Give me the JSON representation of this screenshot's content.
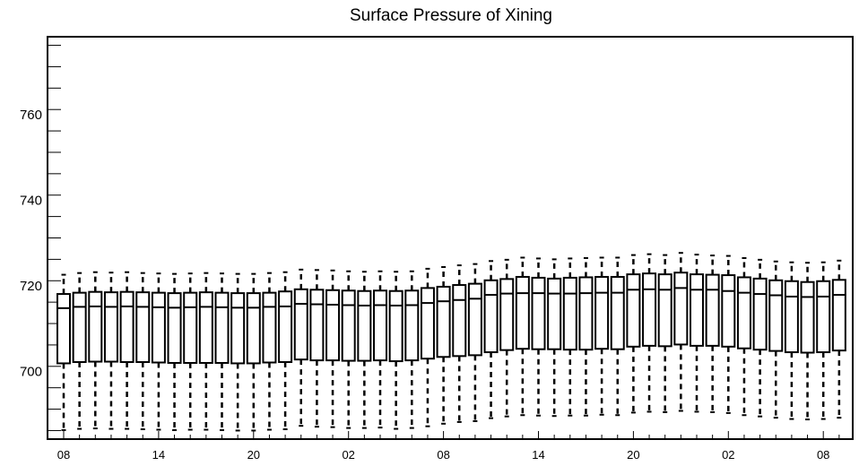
{
  "chart_data": {
    "type": "boxplot",
    "title": "Surface Pressure of Xining",
    "xlabel": "",
    "ylabel": "",
    "ylim": [
      684,
      778
    ],
    "y_ticks_major": [
      700,
      720,
      740,
      760
    ],
    "x_tick_labels": [
      "08",
      "14",
      "20",
      "02",
      "08",
      "14",
      "20",
      "02",
      "08"
    ],
    "x_tick_label_positions": [
      0,
      6,
      12,
      18,
      24,
      30,
      36,
      42,
      48
    ],
    "grid": false,
    "series": [
      {
        "q1": [
          701.7,
          702.0,
          702.1,
          702.1,
          702.0,
          702.0,
          701.9,
          701.8,
          701.8,
          701.8,
          701.8,
          701.7,
          701.7,
          701.9,
          702.0,
          702.6,
          702.4,
          702.4,
          702.3,
          702.3,
          702.4,
          702.2,
          702.4,
          702.8,
          703.2,
          703.4,
          703.6,
          704.3,
          704.8,
          705.1,
          705.0,
          705.0,
          704.9,
          704.9,
          705.1,
          705.0,
          705.6,
          705.8,
          705.7,
          706.1,
          705.8,
          705.8,
          705.6,
          705.2,
          704.9,
          704.6,
          704.3,
          704.2,
          704.3,
          704.7
        ],
        "median": [
          714.6,
          714.9,
          715.0,
          714.9,
          715.0,
          714.9,
          714.8,
          714.7,
          714.8,
          714.9,
          714.8,
          714.7,
          714.7,
          714.9,
          715.0,
          715.6,
          715.5,
          715.4,
          715.3,
          715.2,
          715.3,
          715.2,
          715.3,
          715.8,
          716.2,
          716.5,
          716.8,
          717.7,
          718.0,
          718.1,
          718.1,
          718.0,
          718.0,
          718.1,
          718.2,
          718.2,
          718.9,
          719.0,
          718.9,
          719.3,
          718.9,
          718.9,
          718.6,
          718.2,
          717.9,
          717.6,
          717.3,
          717.2,
          717.3,
          717.7
        ],
        "q3": [
          717.9,
          718.2,
          718.4,
          718.3,
          718.4,
          718.3,
          718.2,
          718.1,
          718.2,
          718.3,
          718.2,
          718.1,
          718.1,
          718.2,
          718.5,
          719.0,
          718.9,
          718.8,
          718.7,
          718.6,
          718.7,
          718.6,
          718.7,
          719.3,
          719.6,
          720.0,
          720.3,
          721.1,
          721.4,
          721.9,
          721.7,
          721.5,
          721.7,
          721.8,
          721.9,
          721.9,
          722.5,
          722.7,
          722.5,
          722.9,
          722.5,
          722.4,
          722.3,
          721.8,
          721.5,
          721.1,
          720.9,
          720.7,
          720.9,
          721.2
        ],
        "whisker_high": [
          722.4,
          722.8,
          723.0,
          722.9,
          723.0,
          722.8,
          722.7,
          722.6,
          722.7,
          722.8,
          722.7,
          722.6,
          722.6,
          722.8,
          723.0,
          723.6,
          723.5,
          723.4,
          723.2,
          723.1,
          723.2,
          723.1,
          723.2,
          723.8,
          724.2,
          724.6,
          724.9,
          725.6,
          725.9,
          726.4,
          726.2,
          726.0,
          726.2,
          726.3,
          726.4,
          726.4,
          727.0,
          727.2,
          727.0,
          727.5,
          727.1,
          726.9,
          726.8,
          726.3,
          725.9,
          725.5,
          725.3,
          725.2,
          725.3,
          725.7
        ],
        "whisker_low": [
          686.1,
          686.4,
          686.5,
          686.4,
          686.4,
          686.3,
          686.2,
          686.1,
          686.2,
          686.2,
          686.1,
          686.0,
          686.0,
          686.2,
          686.3,
          687.1,
          686.9,
          686.8,
          686.6,
          686.6,
          686.7,
          686.4,
          686.6,
          687.0,
          687.6,
          688.0,
          688.2,
          688.9,
          689.3,
          689.6,
          689.5,
          689.4,
          689.5,
          689.5,
          689.7,
          689.6,
          690.2,
          690.4,
          690.3,
          690.6,
          690.4,
          690.3,
          690.1,
          689.6,
          689.3,
          689.0,
          688.7,
          688.6,
          688.7,
          689.0
        ]
      }
    ]
  }
}
